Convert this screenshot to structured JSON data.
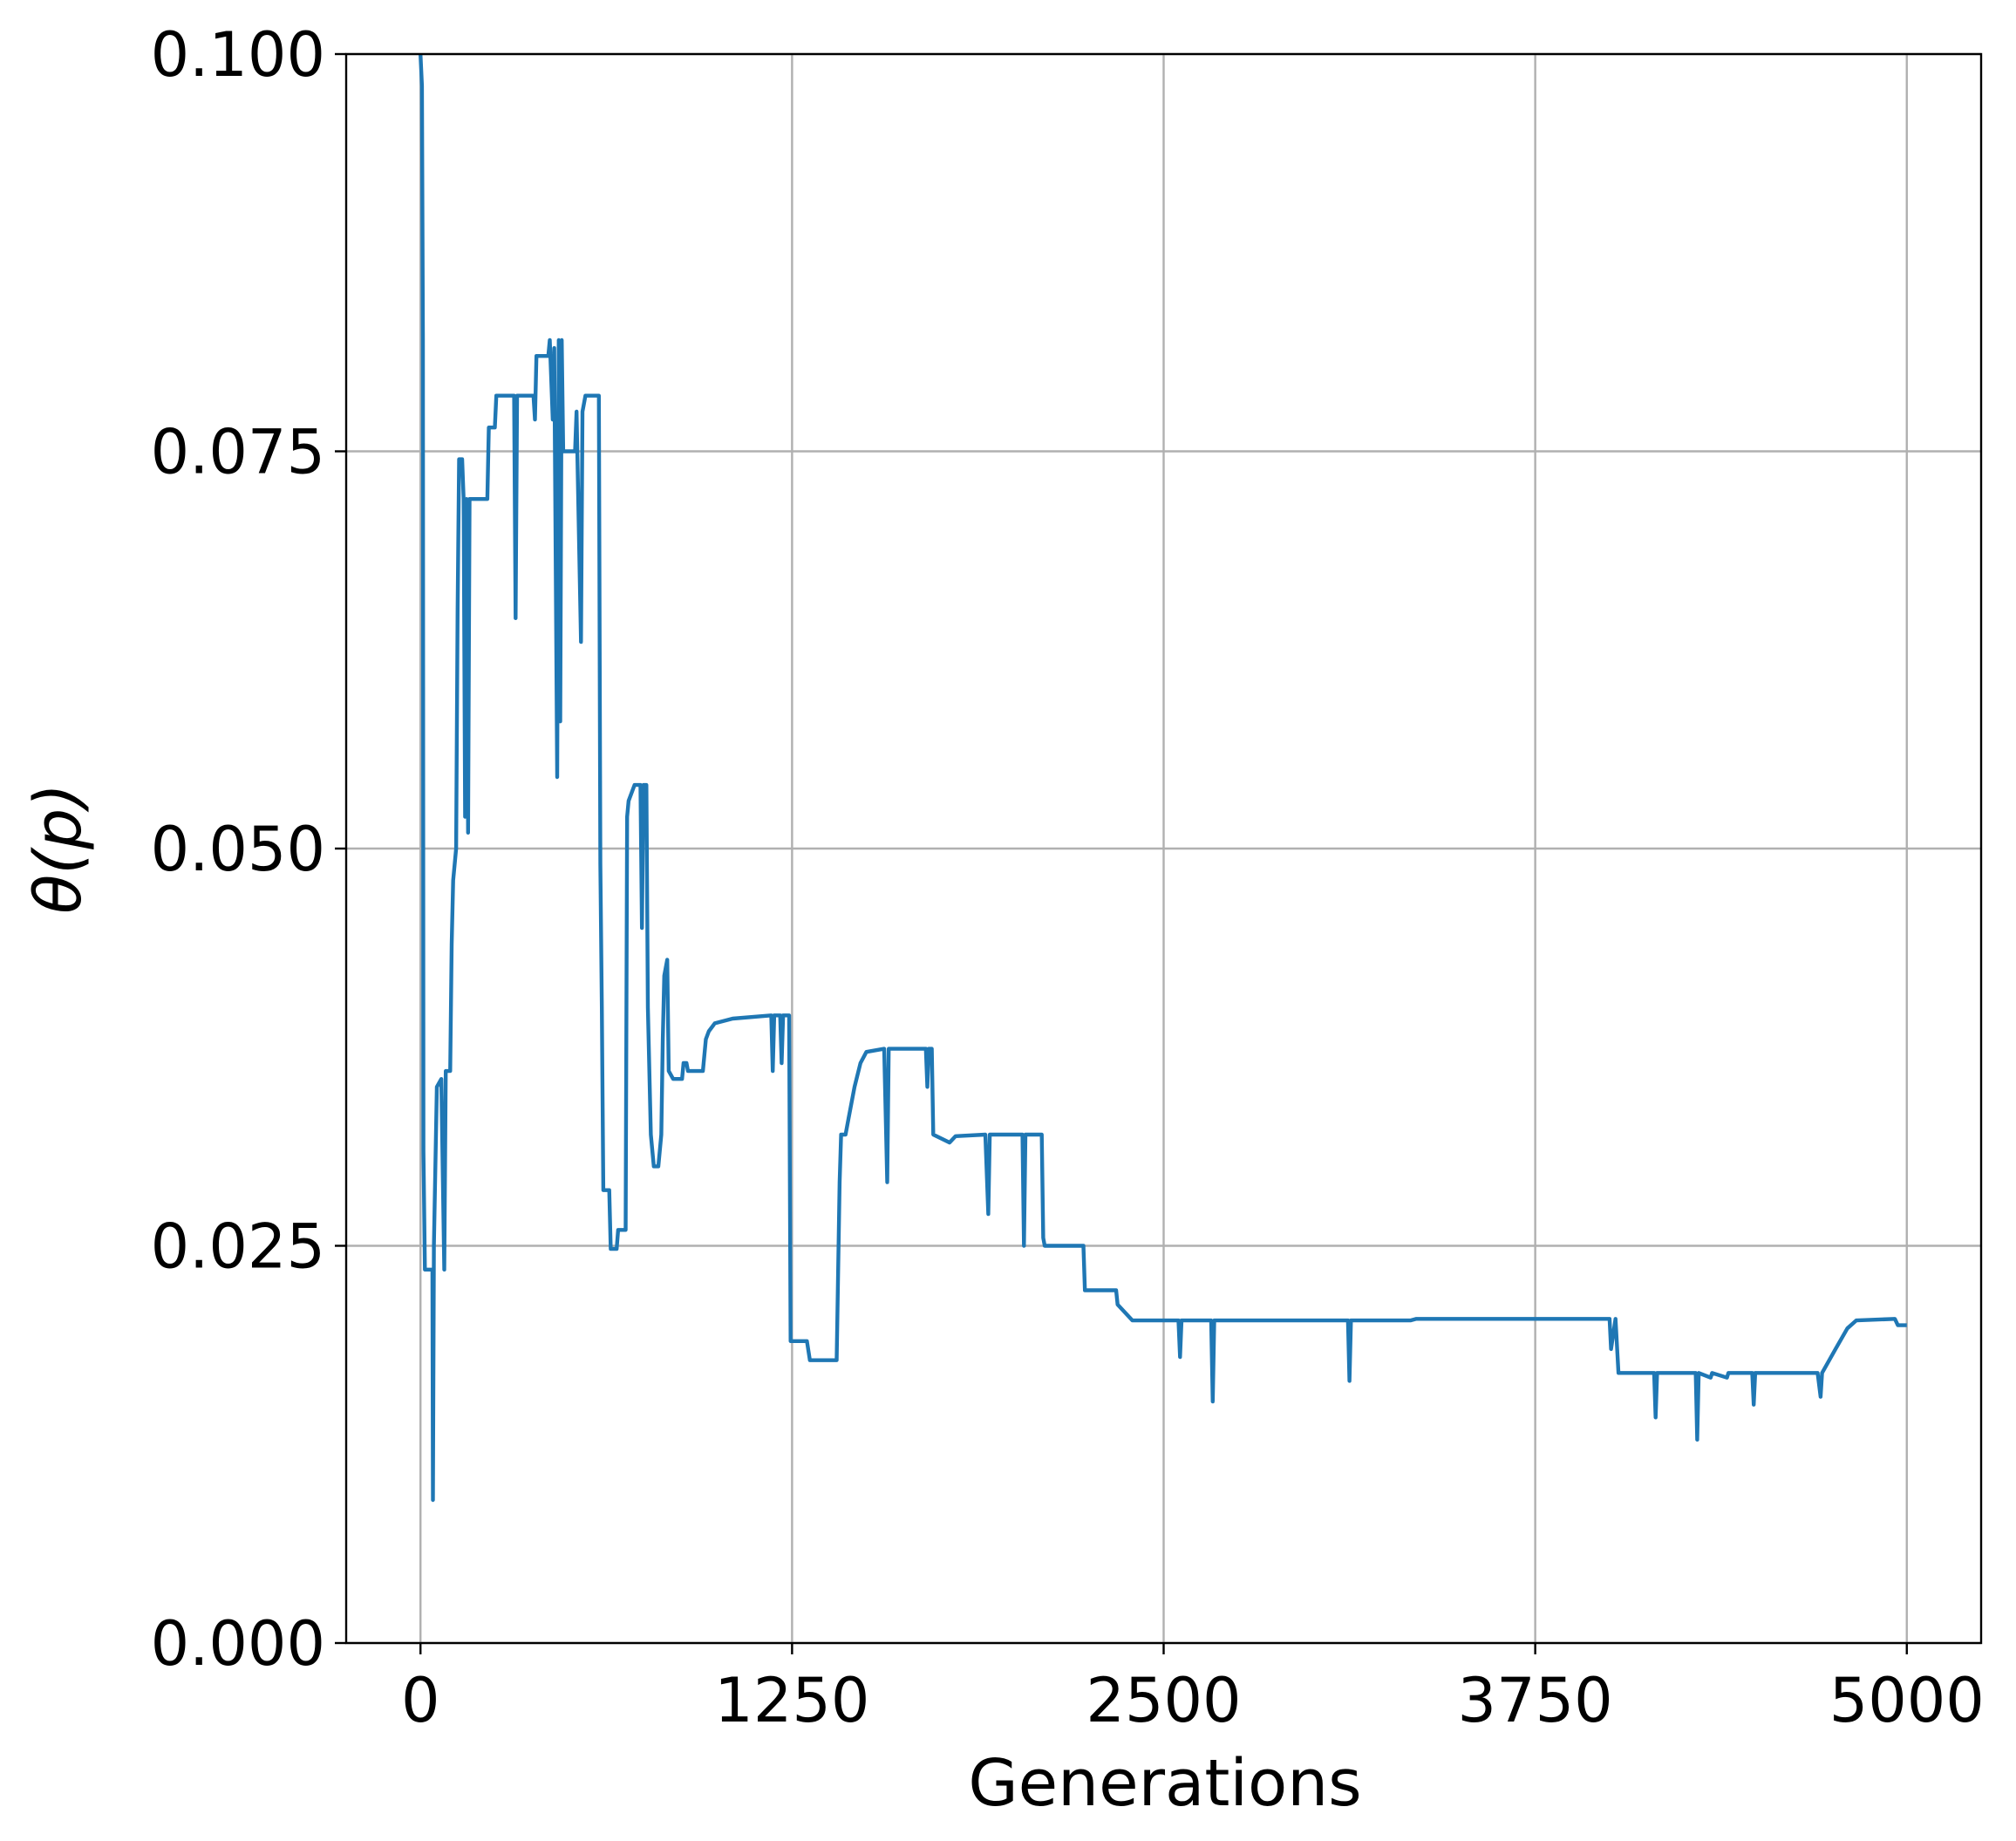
{
  "chart_data": {
    "type": "line",
    "xlabel": "Generations",
    "ylabel": "θ(p)",
    "color": "#1f77b4",
    "grid": true,
    "xlim": [
      -250,
      5250
    ],
    "ylim": [
      0,
      0.1
    ],
    "xticks": [
      0,
      1250,
      2500,
      3750,
      5000
    ],
    "yticks": [
      {
        "value": 0,
        "label": "0.000"
      },
      0.025,
      {
        "value": 0.05,
        "label": "0.050"
      },
      0.075,
      {
        "value": 0.1,
        "label": "0.100"
      }
    ],
    "x": [
      0,
      5,
      8,
      10,
      15,
      40,
      42,
      45,
      55,
      70,
      80,
      85,
      100,
      105,
      110,
      120,
      125,
      130,
      140,
      145,
      150,
      155,
      160,
      165,
      225,
      230,
      250,
      255,
      315,
      320,
      325,
      380,
      385,
      390,
      430,
      435,
      445,
      450,
      460,
      465,
      470,
      475,
      480,
      520,
      525,
      540,
      545,
      555,
      600,
      605,
      610,
      615,
      635,
      640,
      660,
      665,
      690,
      695,
      700,
      720,
      740,
      745,
      750,
      760,
      765,
      775,
      785,
      800,
      810,
      815,
      820,
      830,
      835,
      850,
      880,
      885,
      895,
      900,
      950,
      960,
      970,
      990,
      1050,
      1180,
      1185,
      1190,
      1210,
      1215,
      1220,
      1240,
      1245,
      1300,
      1310,
      1400,
      1410,
      1415,
      1430,
      1440,
      1460,
      1480,
      1500,
      1560,
      1570,
      1575,
      1700,
      1705,
      1710,
      1720,
      1725,
      1780,
      1800,
      1900,
      1910,
      1915,
      2025,
      2030,
      2035,
      2090,
      2095,
      2100,
      2230,
      2235,
      2340,
      2345,
      2370,
      2395,
      2550,
      2555,
      2560,
      2660,
      2665,
      2670,
      3120,
      3125,
      3130,
      3330,
      3350,
      4000,
      4005,
      4020,
      4030,
      4150,
      4155,
      4160,
      4290,
      4295,
      4300,
      4340,
      4345,
      4395,
      4400,
      4480,
      4485,
      4490,
      4700,
      4710,
      4715,
      4760,
      4800,
      4830,
      4960,
      4970,
      5000
    ],
    "values": [
      0.1,
      0.098,
      0.082,
      0.031,
      0.0235,
      0.0235,
      0.009,
      0.025,
      0.035,
      0.0355,
      0.0235,
      0.036,
      0.036,
      0.044,
      0.048,
      0.05,
      0.065,
      0.0745,
      0.0745,
      0.072,
      0.052,
      0.072,
      0.051,
      0.072,
      0.072,
      0.0765,
      0.0765,
      0.0785,
      0.0785,
      0.0645,
      0.0785,
      0.0785,
      0.077,
      0.081,
      0.081,
      0.082,
      0.077,
      0.0815,
      0.0545,
      0.082,
      0.058,
      0.082,
      0.075,
      0.075,
      0.0775,
      0.063,
      0.0775,
      0.0785,
      0.0785,
      0.049,
      0.04,
      0.0285,
      0.0285,
      0.0248,
      0.0248,
      0.026,
      0.026,
      0.052,
      0.053,
      0.054,
      0.054,
      0.045,
      0.054,
      0.054,
      0.04,
      0.032,
      0.03,
      0.03,
      0.032,
      0.038,
      0.042,
      0.043,
      0.036,
      0.0355,
      0.0355,
      0.0365,
      0.0365,
      0.036,
      0.036,
      0.038,
      0.0385,
      0.039,
      0.0393,
      0.0395,
      0.036,
      0.0395,
      0.0395,
      0.0365,
      0.0395,
      0.0395,
      0.019,
      0.019,
      0.0178,
      0.0178,
      0.029,
      0.032,
      0.032,
      0.033,
      0.035,
      0.0365,
      0.0372,
      0.0374,
      0.029,
      0.0374,
      0.0374,
      0.035,
      0.0374,
      0.0374,
      0.032,
      0.0315,
      0.0319,
      0.032,
      0.027,
      0.032,
      0.032,
      0.025,
      0.032,
      0.032,
      0.0255,
      0.025,
      0.025,
      0.0222,
      0.0222,
      0.0213,
      0.0208,
      0.0203,
      0.0203,
      0.018,
      0.0203,
      0.0203,
      0.0152,
      0.0203,
      0.0203,
      0.0165,
      0.0203,
      0.0203,
      0.0204,
      0.0204,
      0.0185,
      0.0204,
      0.017,
      0.017,
      0.0142,
      0.017,
      0.017,
      0.0128,
      0.017,
      0.0167,
      0.017,
      0.0167,
      0.017,
      0.017,
      0.015,
      0.017,
      0.017,
      0.0155,
      0.017,
      0.0185,
      0.0198,
      0.0203,
      0.0204,
      0.02,
      0.02
    ]
  }
}
